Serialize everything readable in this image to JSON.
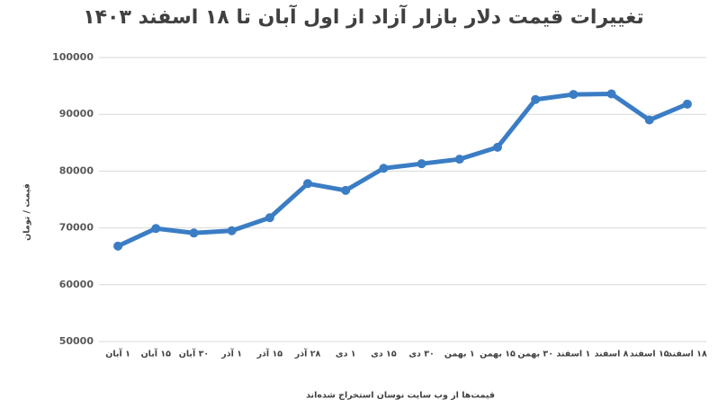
{
  "chart_data": {
    "type": "line",
    "title": "تغییرات قیمت دلار بازار آزاد از اول آبان تا ۱۸ اسفند ۱۴۰۳",
    "y_label": "قیمت / تومان",
    "x_label": "قیمت‌ها از وب سایت نوسان استخراج شده‌اند",
    "categories": [
      "۱ آبان",
      "۱۵ آبان",
      "۳۰ آبان",
      "۱ آذر",
      "۱۵ آذر",
      "۲۸ آذر",
      "۱ دی",
      "۱۵ دی",
      "۳۰ دی",
      "۱ بهمن",
      "۱۵ بهمن",
      "۳۰ بهمن",
      "۱ اسفند",
      "۸ اسفند",
      "۱۵ اسفند",
      "۱۸ اسفند"
    ],
    "series": [
      {
        "name": "قیمت دلار",
        "color": "#3b7dc4",
        "values": [
          66800,
          69900,
          69100,
          69500,
          71800,
          77800,
          76600,
          80500,
          81300,
          82100,
          84200,
          92600,
          93500,
          93600,
          89000,
          91800
        ]
      }
    ],
    "ylim": [
      50000,
      100000
    ],
    "yticks": [
      50000,
      60000,
      70000,
      80000,
      90000,
      100000
    ],
    "grid": true
  }
}
